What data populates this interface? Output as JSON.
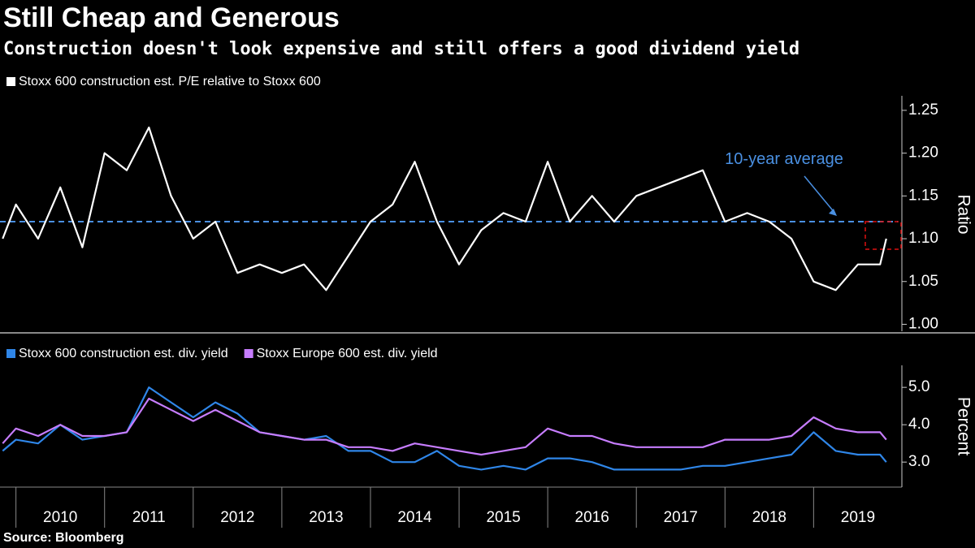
{
  "title": "Still Cheap and Generous",
  "subtitle": "Construction doesn't look expensive and still offers a good dividend yield",
  "source": "Source: Bloomberg",
  "chart_data": [
    {
      "type": "line",
      "y_label": "Ratio",
      "x": [
        2009.85,
        2010.0,
        2010.25,
        2010.5,
        2010.75,
        2011.0,
        2011.25,
        2011.5,
        2011.75,
        2012.0,
        2012.25,
        2012.5,
        2012.75,
        2013.0,
        2013.25,
        2013.5,
        2013.75,
        2014.0,
        2014.25,
        2014.5,
        2014.75,
        2015.0,
        2015.25,
        2015.5,
        2015.75,
        2016.0,
        2016.25,
        2016.5,
        2016.75,
        2017.0,
        2017.25,
        2017.5,
        2017.75,
        2018.0,
        2018.25,
        2018.5,
        2018.75,
        2019.0,
        2019.25,
        2019.5,
        2019.75,
        2019.82
      ],
      "series": [
        {
          "name": "Stoxx 600 construction est. P/E relative to Stoxx 600",
          "color": "#ffffff",
          "values": [
            1.1,
            1.14,
            1.1,
            1.16,
            1.09,
            1.2,
            1.18,
            1.23,
            1.15,
            1.1,
            1.12,
            1.06,
            1.07,
            1.06,
            1.07,
            1.04,
            1.08,
            1.12,
            1.14,
            1.19,
            1.12,
            1.07,
            1.11,
            1.13,
            1.12,
            1.19,
            1.12,
            1.15,
            1.12,
            1.15,
            1.16,
            1.17,
            1.18,
            1.12,
            1.13,
            1.12,
            1.1,
            1.05,
            1.04,
            1.07,
            1.07,
            1.1
          ]
        }
      ],
      "reference_line": {
        "value": 1.12,
        "label": "10-year average",
        "color": "#4a90e2"
      },
      "xlim": [
        2009.82,
        2019.95
      ],
      "ylim": [
        0.99,
        1.267
      ],
      "yticks": [
        {
          "value": 1.0,
          "label": "1.00"
        },
        1.05,
        {
          "value": 1.1,
          "label": "1.10"
        },
        1.15,
        {
          "value": 1.2,
          "label": "1.20"
        },
        1.25
      ]
    },
    {
      "type": "line",
      "y_label": "Percent",
      "x": [
        2009.85,
        2010.0,
        2010.25,
        2010.5,
        2010.75,
        2011.0,
        2011.25,
        2011.5,
        2011.75,
        2012.0,
        2012.25,
        2012.5,
        2012.75,
        2013.0,
        2013.25,
        2013.5,
        2013.75,
        2014.0,
        2014.25,
        2014.5,
        2014.75,
        2015.0,
        2015.25,
        2015.5,
        2015.75,
        2016.0,
        2016.25,
        2016.5,
        2016.75,
        2017.0,
        2017.25,
        2017.5,
        2017.75,
        2018.0,
        2018.25,
        2018.5,
        2018.75,
        2019.0,
        2019.25,
        2019.5,
        2019.75,
        2019.82
      ],
      "series": [
        {
          "name": "Stoxx 600 construction est. div. yield",
          "color": "#2f86e8",
          "values": [
            3.3,
            3.6,
            3.5,
            4.0,
            3.6,
            3.7,
            3.8,
            5.0,
            4.6,
            4.2,
            4.6,
            4.3,
            3.8,
            3.7,
            3.6,
            3.7,
            3.3,
            3.3,
            3.0,
            3.0,
            3.3,
            2.9,
            2.8,
            2.9,
            2.8,
            3.1,
            3.1,
            3.0,
            2.8,
            2.8,
            2.8,
            2.8,
            2.9,
            2.9,
            3.0,
            3.1,
            3.2,
            3.8,
            3.3,
            3.2,
            3.2,
            3.0
          ]
        },
        {
          "name": "Stoxx Europe 600 est. div. yield",
          "color": "#c77dff",
          "values": [
            3.5,
            3.9,
            3.7,
            4.0,
            3.7,
            3.7,
            3.8,
            4.7,
            4.4,
            4.1,
            4.4,
            4.1,
            3.8,
            3.7,
            3.6,
            3.6,
            3.4,
            3.4,
            3.3,
            3.5,
            3.4,
            3.3,
            3.2,
            3.3,
            3.4,
            3.9,
            3.7,
            3.7,
            3.5,
            3.4,
            3.4,
            3.4,
            3.4,
            3.6,
            3.6,
            3.6,
            3.7,
            4.2,
            3.9,
            3.8,
            3.8,
            3.6
          ]
        }
      ],
      "xlim": [
        2009.82,
        2019.95
      ],
      "xticks": [
        {
          "value": 2010.5,
          "label": "2010"
        },
        {
          "value": 2011.5,
          "label": "2011"
        },
        {
          "value": 2012.5,
          "label": "2012"
        },
        {
          "value": 2013.5,
          "label": "2013"
        },
        {
          "value": 2014.5,
          "label": "2014"
        },
        {
          "value": 2015.5,
          "label": "2015"
        },
        {
          "value": 2016.5,
          "label": "2016"
        },
        {
          "value": 2017.5,
          "label": "2017"
        },
        {
          "value": 2018.5,
          "label": "2018"
        },
        {
          "value": 2019.5,
          "label": "2019"
        }
      ],
      "ylim": [
        2.33,
        5.59
      ],
      "yticks": [
        {
          "value": 3.0,
          "label": "3.0"
        },
        {
          "value": 4.0,
          "label": "4.0"
        },
        {
          "value": 5.0,
          "label": "5.0"
        }
      ]
    }
  ]
}
